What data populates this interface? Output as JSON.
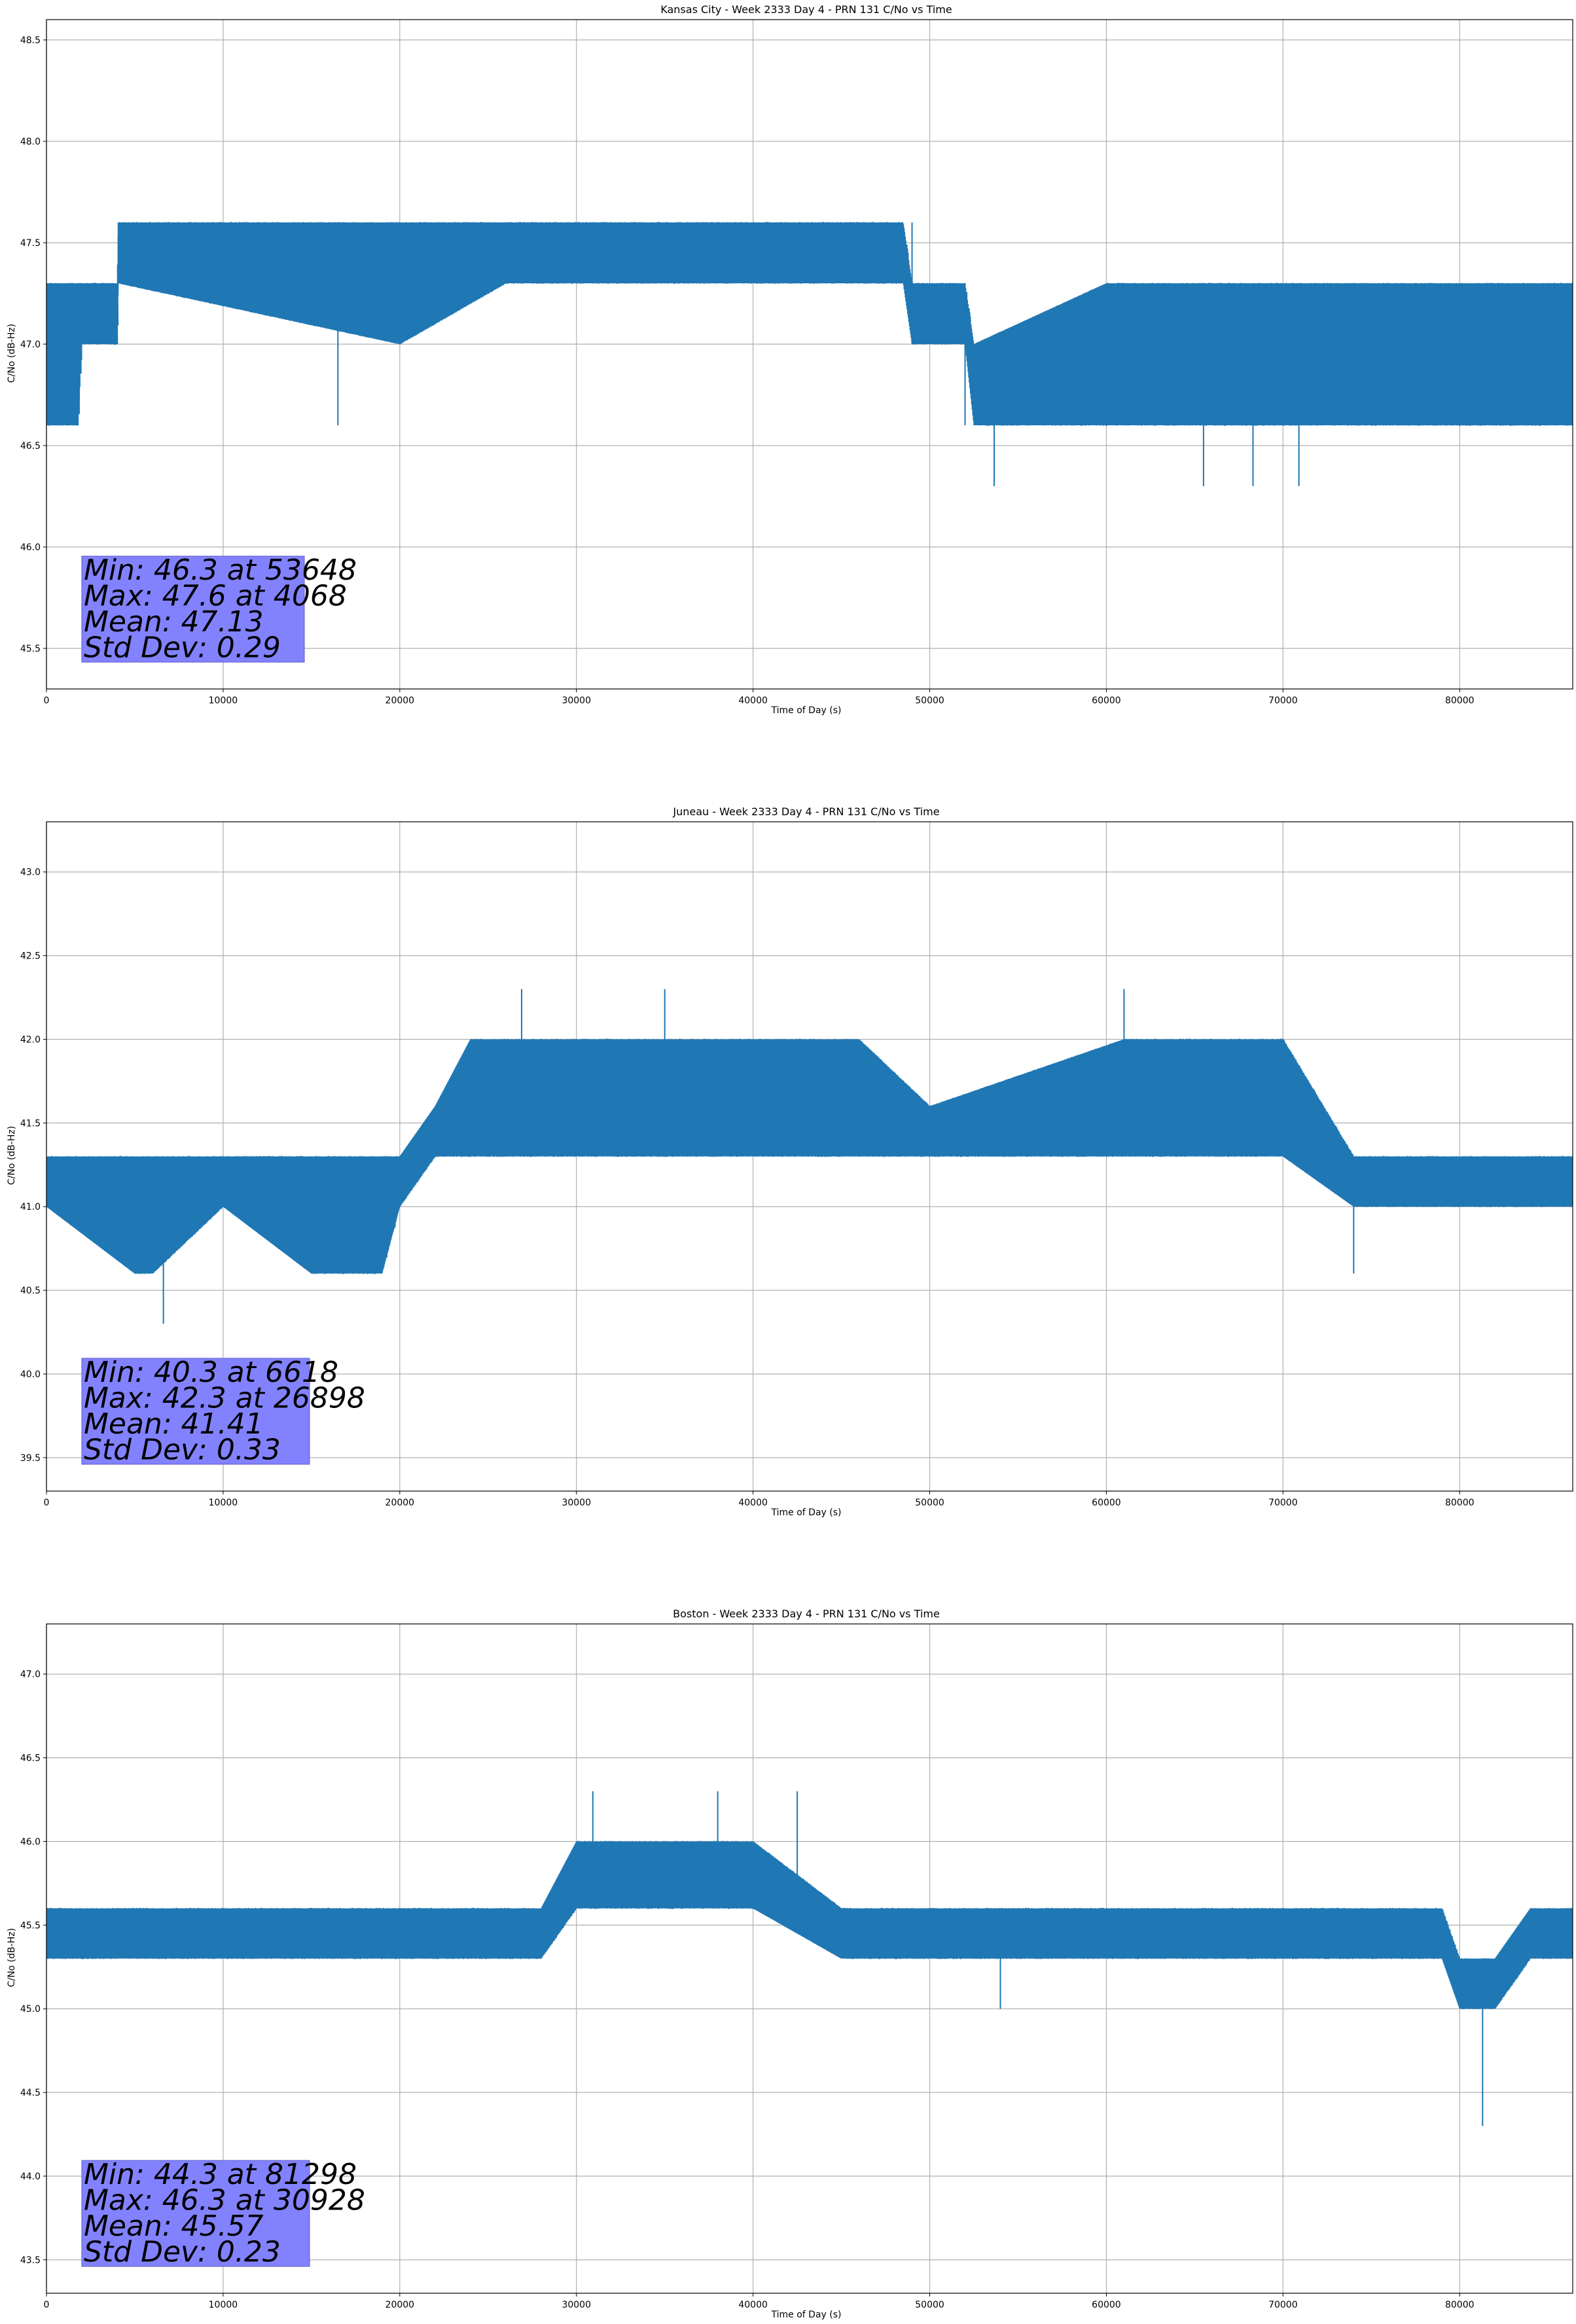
{
  "chart_data": [
    {
      "type": "line",
      "title": "Kansas City - Week 2333 Day 4 - PRN 131 C/No vs Time",
      "xlabel": "Time of Day (s)",
      "ylabel": "C/No (dB-Hz)",
      "xlim": [
        0,
        86400
      ],
      "ylim": [
        45.3,
        48.6
      ],
      "xticks": [
        0,
        10000,
        20000,
        30000,
        40000,
        50000,
        60000,
        70000,
        80000
      ],
      "yticks": [
        45.5,
        46.0,
        46.5,
        47.0,
        47.5,
        48.0,
        48.5
      ],
      "grid": true,
      "series": [
        {
          "color": "#1f77b4",
          "x": [
            0,
            4068,
            16500,
            26000,
            49000,
            52000,
            53648,
            65500,
            68300,
            70900,
            86400
          ],
          "y": [
            47.0,
            47.6,
            46.6,
            47.6,
            47.6,
            46.6,
            46.3,
            46.3,
            46.3,
            46.3,
            46.6
          ],
          "band": {
            "x": [
              0,
              1800,
              2000,
              4000,
              4068,
              20000,
              26000,
              30000,
              40000,
              48500,
              49000,
              52000,
              52500,
              60000,
              70000,
              80000,
              86400
            ],
            "low": [
              46.6,
              46.6,
              47.0,
              47.0,
              47.3,
              47.0,
              47.3,
              47.3,
              47.3,
              47.3,
              47.0,
              47.0,
              46.6,
              46.6,
              46.6,
              46.6,
              46.6
            ],
            "high": [
              47.3,
              47.3,
              47.3,
              47.3,
              47.6,
              47.6,
              47.6,
              47.6,
              47.6,
              47.6,
              47.3,
              47.3,
              47.0,
              47.3,
              47.3,
              47.3,
              47.3
            ]
          }
        }
      ],
      "stats": [
        "Min: 46.3 at 53648",
        "Max: 47.6 at 4068",
        "Mean: 47.13",
        "Std Dev: 0.29"
      ],
      "stats_box_color": "#8080ff"
    },
    {
      "type": "line",
      "title": "Juneau - Week 2333 Day 4 - PRN 131 C/No vs Time",
      "xlabel": "Time of Day (s)",
      "ylabel": "C/No (dB-Hz)",
      "xlim": [
        0,
        86400
      ],
      "ylim": [
        39.3,
        43.3
      ],
      "xticks": [
        0,
        10000,
        20000,
        30000,
        40000,
        50000,
        60000,
        70000,
        80000
      ],
      "yticks": [
        39.5,
        40.0,
        40.5,
        41.0,
        41.5,
        42.0,
        42.5,
        43.0
      ],
      "grid": true,
      "series": [
        {
          "color": "#1f77b4",
          "x": [
            0,
            6618,
            19000,
            24000,
            26898,
            35000,
            46000,
            61000,
            74000,
            86400
          ],
          "y": [
            41.0,
            40.3,
            40.6,
            41.6,
            42.3,
            42.3,
            41.3,
            42.3,
            40.6,
            41.3
          ],
          "band": {
            "x": [
              0,
              5000,
              6000,
              10000,
              15000,
              19000,
              20000,
              22000,
              24000,
              26898,
              30000,
              35000,
              40000,
              46000,
              50000,
              61000,
              65000,
              70000,
              74000,
              78000,
              86400
            ],
            "low": [
              41.0,
              40.6,
              40.6,
              41.0,
              40.6,
              40.6,
              41.0,
              41.3,
              41.3,
              41.3,
              41.3,
              41.3,
              41.3,
              41.3,
              41.3,
              41.3,
              41.3,
              41.3,
              41.0,
              41.0,
              41.0
            ],
            "high": [
              41.3,
              41.3,
              41.3,
              41.3,
              41.3,
              41.3,
              41.3,
              41.6,
              42.0,
              42.0,
              42.0,
              42.0,
              42.0,
              42.0,
              41.6,
              42.0,
              42.0,
              42.0,
              41.3,
              41.3,
              41.3
            ]
          }
        }
      ],
      "stats": [
        "Min: 40.3 at 6618",
        "Max: 42.3 at 26898",
        "Mean: 41.41",
        "Std Dev: 0.33"
      ],
      "stats_box_color": "#8080ff"
    },
    {
      "type": "line",
      "title": "Boston - Week 2333 Day 4 - PRN 131 C/No vs Time",
      "xlabel": "Time of Day (s)",
      "ylabel": "C/No (dB-Hz)",
      "xlim": [
        0,
        86400
      ],
      "ylim": [
        43.3,
        47.3
      ],
      "xticks": [
        0,
        10000,
        20000,
        30000,
        40000,
        50000,
        60000,
        70000,
        80000
      ],
      "yticks": [
        43.5,
        44.0,
        44.5,
        45.0,
        45.5,
        46.0,
        46.5,
        47.0
      ],
      "grid": true,
      "series": [
        {
          "color": "#1f77b4",
          "x": [
            0,
            30928,
            38000,
            42500,
            54000,
            81298,
            86400
          ],
          "y": [
            45.3,
            46.3,
            46.3,
            46.3,
            45.0,
            44.3,
            45.6
          ],
          "band": {
            "x": [
              0,
              10000,
              20000,
              28000,
              30000,
              40000,
              45000,
              50000,
              60000,
              70000,
              77000,
              79000,
              80000,
              82000,
              84000,
              86400
            ],
            "low": [
              45.3,
              45.3,
              45.3,
              45.3,
              45.6,
              45.6,
              45.3,
              45.3,
              45.3,
              45.3,
              45.3,
              45.3,
              45.0,
              45.0,
              45.3,
              45.3
            ],
            "high": [
              45.6,
              45.6,
              45.6,
              45.6,
              46.0,
              46.0,
              45.6,
              45.6,
              45.6,
              45.6,
              45.6,
              45.6,
              45.3,
              45.3,
              45.6,
              45.6
            ]
          }
        }
      ],
      "stats": [
        "Min: 44.3 at 81298",
        "Max: 46.3 at 30928",
        "Mean: 45.57",
        "Std Dev: 0.23"
      ],
      "stats_box_color": "#8080ff"
    }
  ]
}
